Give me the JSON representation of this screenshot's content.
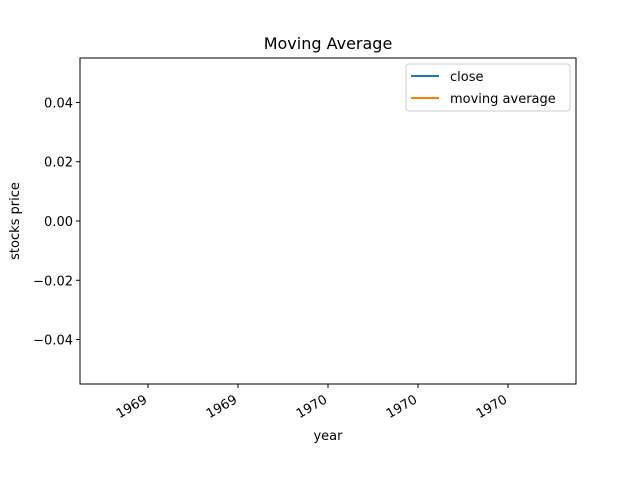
{
  "chart_data": {
    "type": "line",
    "title": "Moving Average",
    "xlabel": "year",
    "ylabel": "stocks price",
    "ylim": [
      -0.055,
      0.055
    ],
    "y_ticks": [
      {
        "value": 0.04,
        "label": "0.04"
      },
      {
        "value": 0.02,
        "label": "0.02"
      },
      {
        "value": 0.0,
        "label": "0.00"
      },
      {
        "value": -0.02,
        "label": "−0.02"
      },
      {
        "value": -0.04,
        "label": "−0.04"
      }
    ],
    "x_ticks": [
      "1969",
      "1969",
      "1970",
      "1970",
      "1970"
    ],
    "grid": false,
    "legend_position": "top-right",
    "series": [
      {
        "name": "close",
        "color": "#1f77b4",
        "values": []
      },
      {
        "name": "moving average",
        "color": "#ff7f0e",
        "values": []
      }
    ]
  }
}
